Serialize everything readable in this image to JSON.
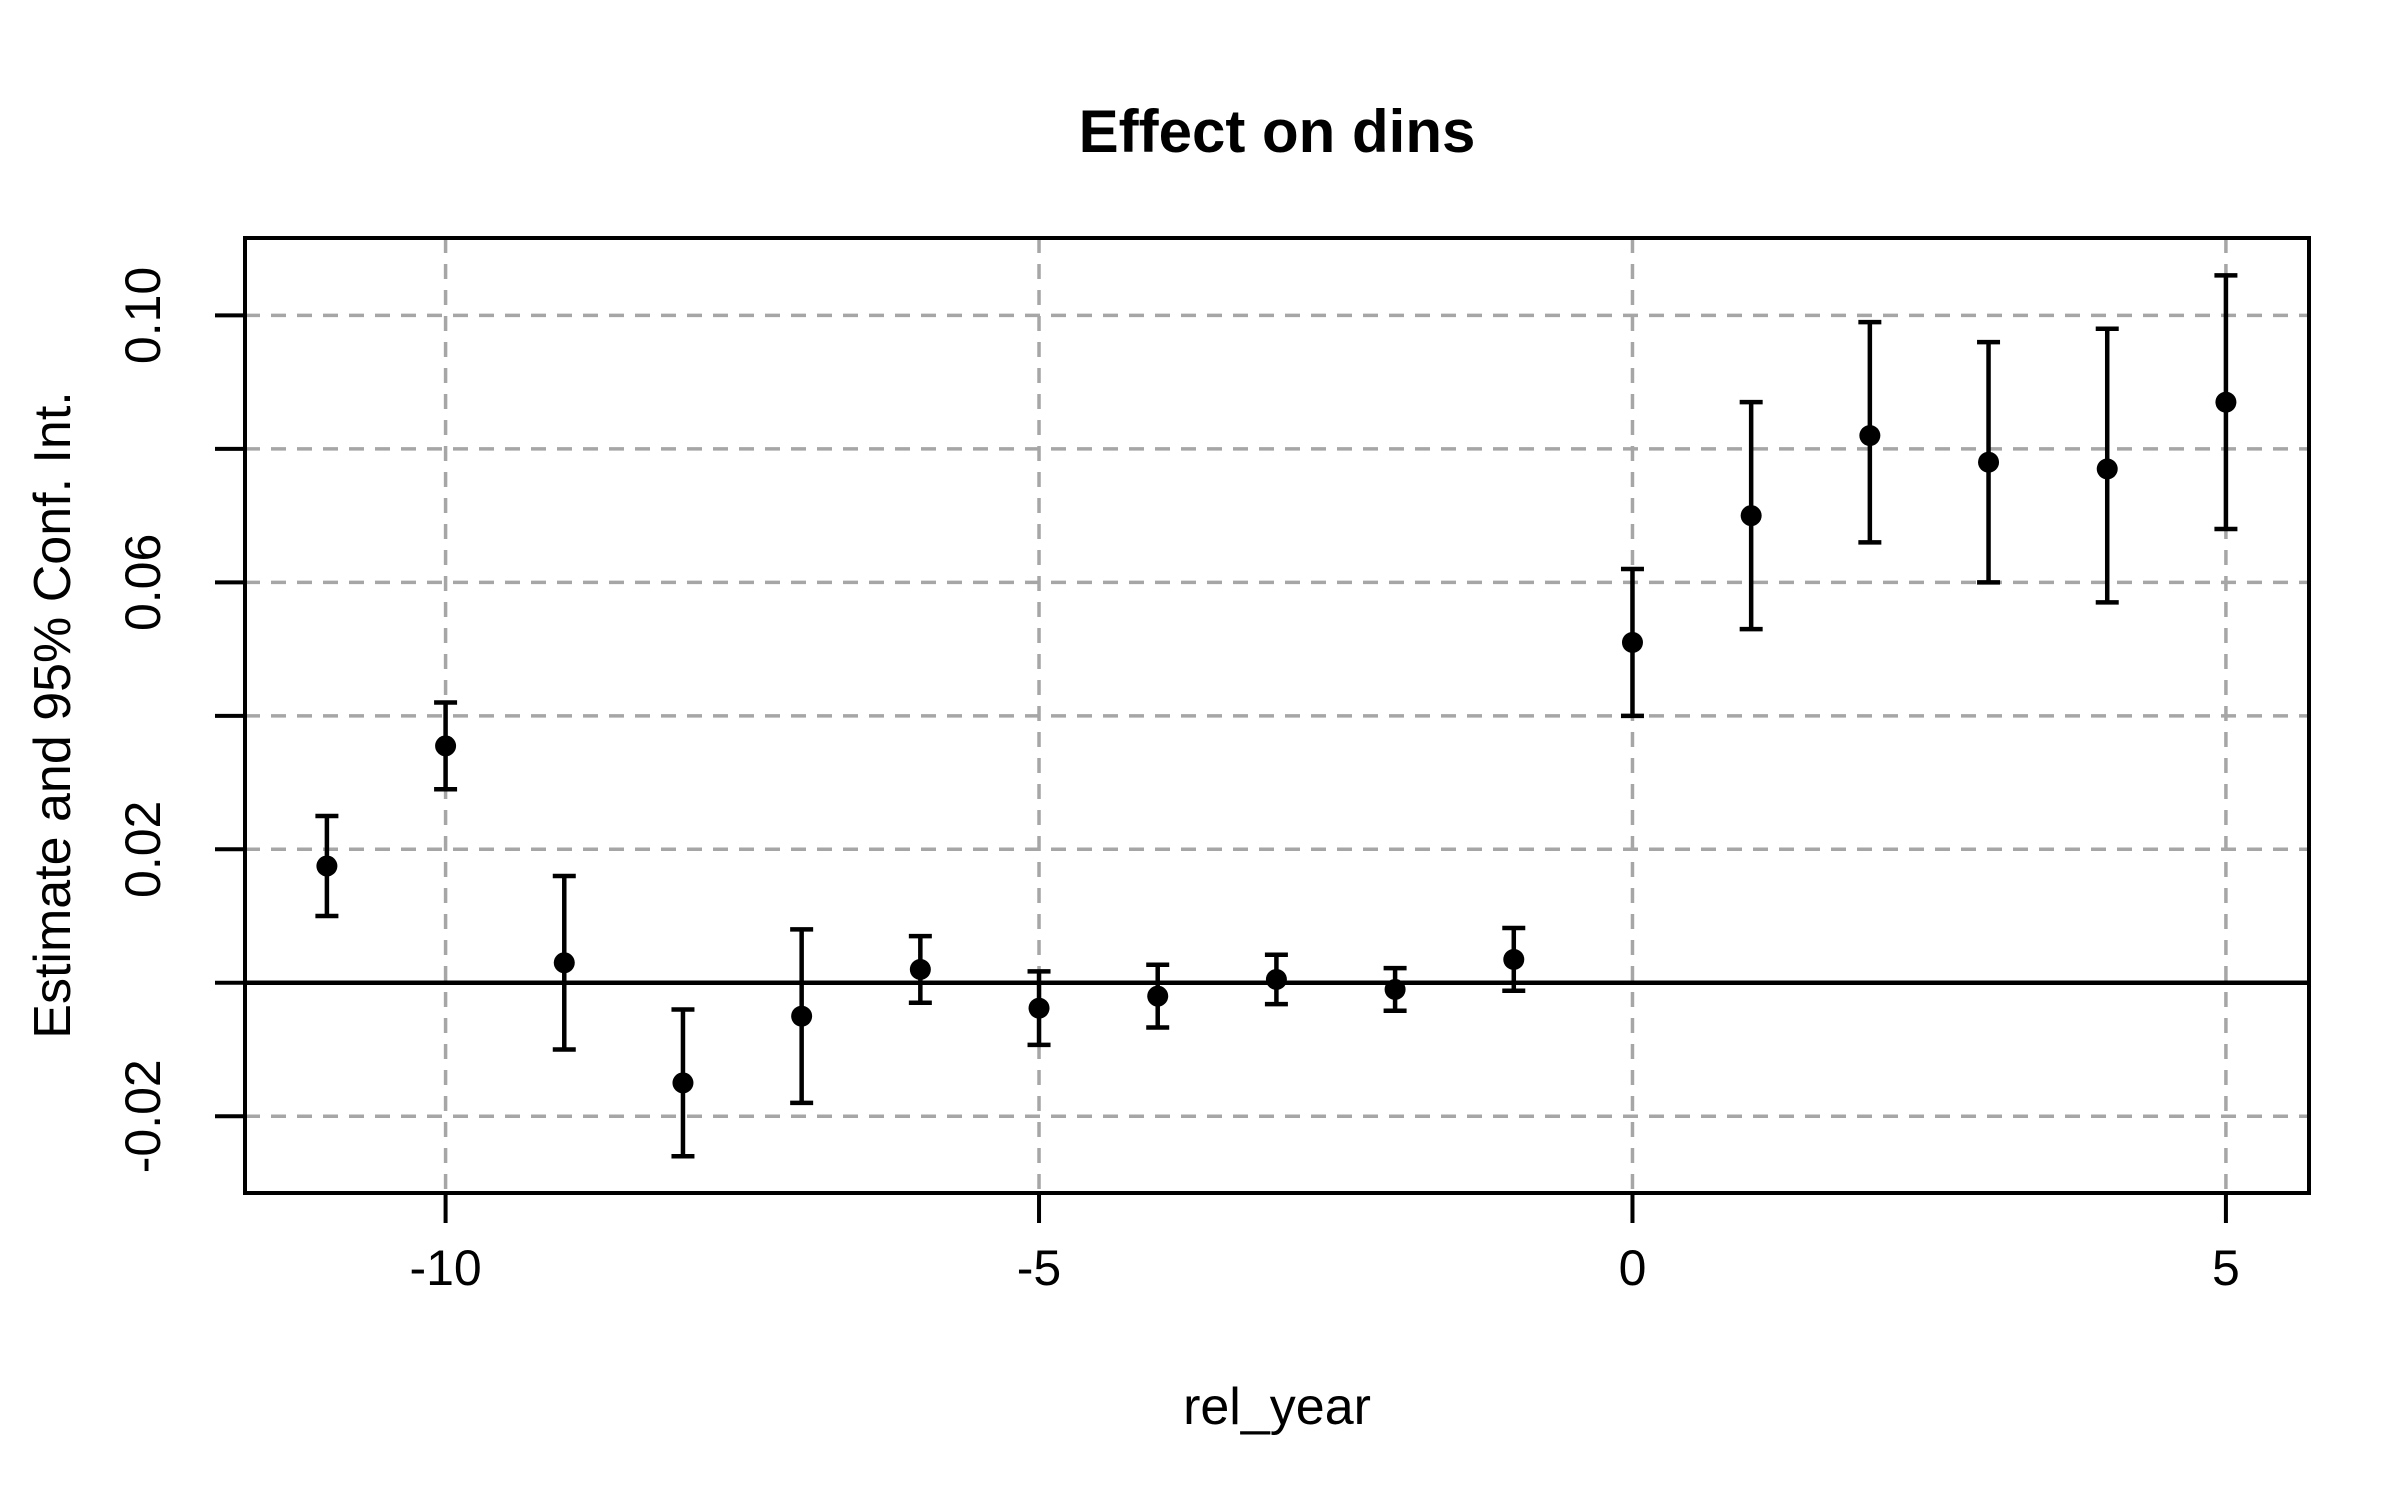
{
  "chart_data": {
    "type": "scatter",
    "subtype": "errorbar-event-study",
    "title": "Effect on dins",
    "xlabel": "rel_year",
    "ylabel": "Estimate and 95% Conf. Int.",
    "x": [
      -11,
      -10,
      -9,
      -8,
      -7,
      -6,
      -5,
      -4,
      -3,
      -2,
      -1,
      0,
      1,
      2,
      3,
      4,
      5
    ],
    "series": [
      {
        "name": "estimate",
        "values": [
          0.0175,
          0.0355,
          0.003,
          -0.015,
          -0.005,
          0.002,
          -0.0038,
          -0.002,
          0.0005,
          -0.001,
          0.0035,
          0.051,
          0.07,
          0.082,
          0.078,
          0.077,
          0.087
        ]
      },
      {
        "name": "ci_lower",
        "values": [
          0.01,
          0.029,
          -0.01,
          -0.026,
          -0.018,
          -0.003,
          -0.0093,
          -0.0067,
          -0.0032,
          -0.0042,
          -0.0012,
          0.04,
          0.053,
          0.066,
          0.06,
          0.057,
          0.068
        ]
      },
      {
        "name": "ci_upper",
        "values": [
          0.025,
          0.042,
          0.016,
          -0.004,
          0.008,
          0.007,
          0.0017,
          0.0027,
          0.0042,
          0.0022,
          0.0082,
          0.062,
          0.087,
          0.099,
          0.096,
          0.098,
          0.106
        ]
      }
    ],
    "xlim": [
      -11.69,
      5.7
    ],
    "ylim": [
      -0.0315,
      0.1116
    ],
    "x_ticks": [
      -10,
      -5,
      0,
      5
    ],
    "x_tick_labels": [
      "-10",
      "-5",
      "0",
      "5"
    ],
    "y_ticks": [
      -0.02,
      0,
      0.02,
      0.04,
      0.06,
      0.08,
      0.1
    ],
    "y_tick_labels": [
      "-0.02",
      "",
      "0.02",
      "",
      "0.06",
      "",
      "0.10"
    ],
    "grid": true,
    "legend": "none",
    "zero_line": 0,
    "colors": {
      "point": "#000000",
      "error_bar": "#000000",
      "grid": "#a6a6a6",
      "axis": "#000000",
      "background": "#ffffff"
    }
  }
}
